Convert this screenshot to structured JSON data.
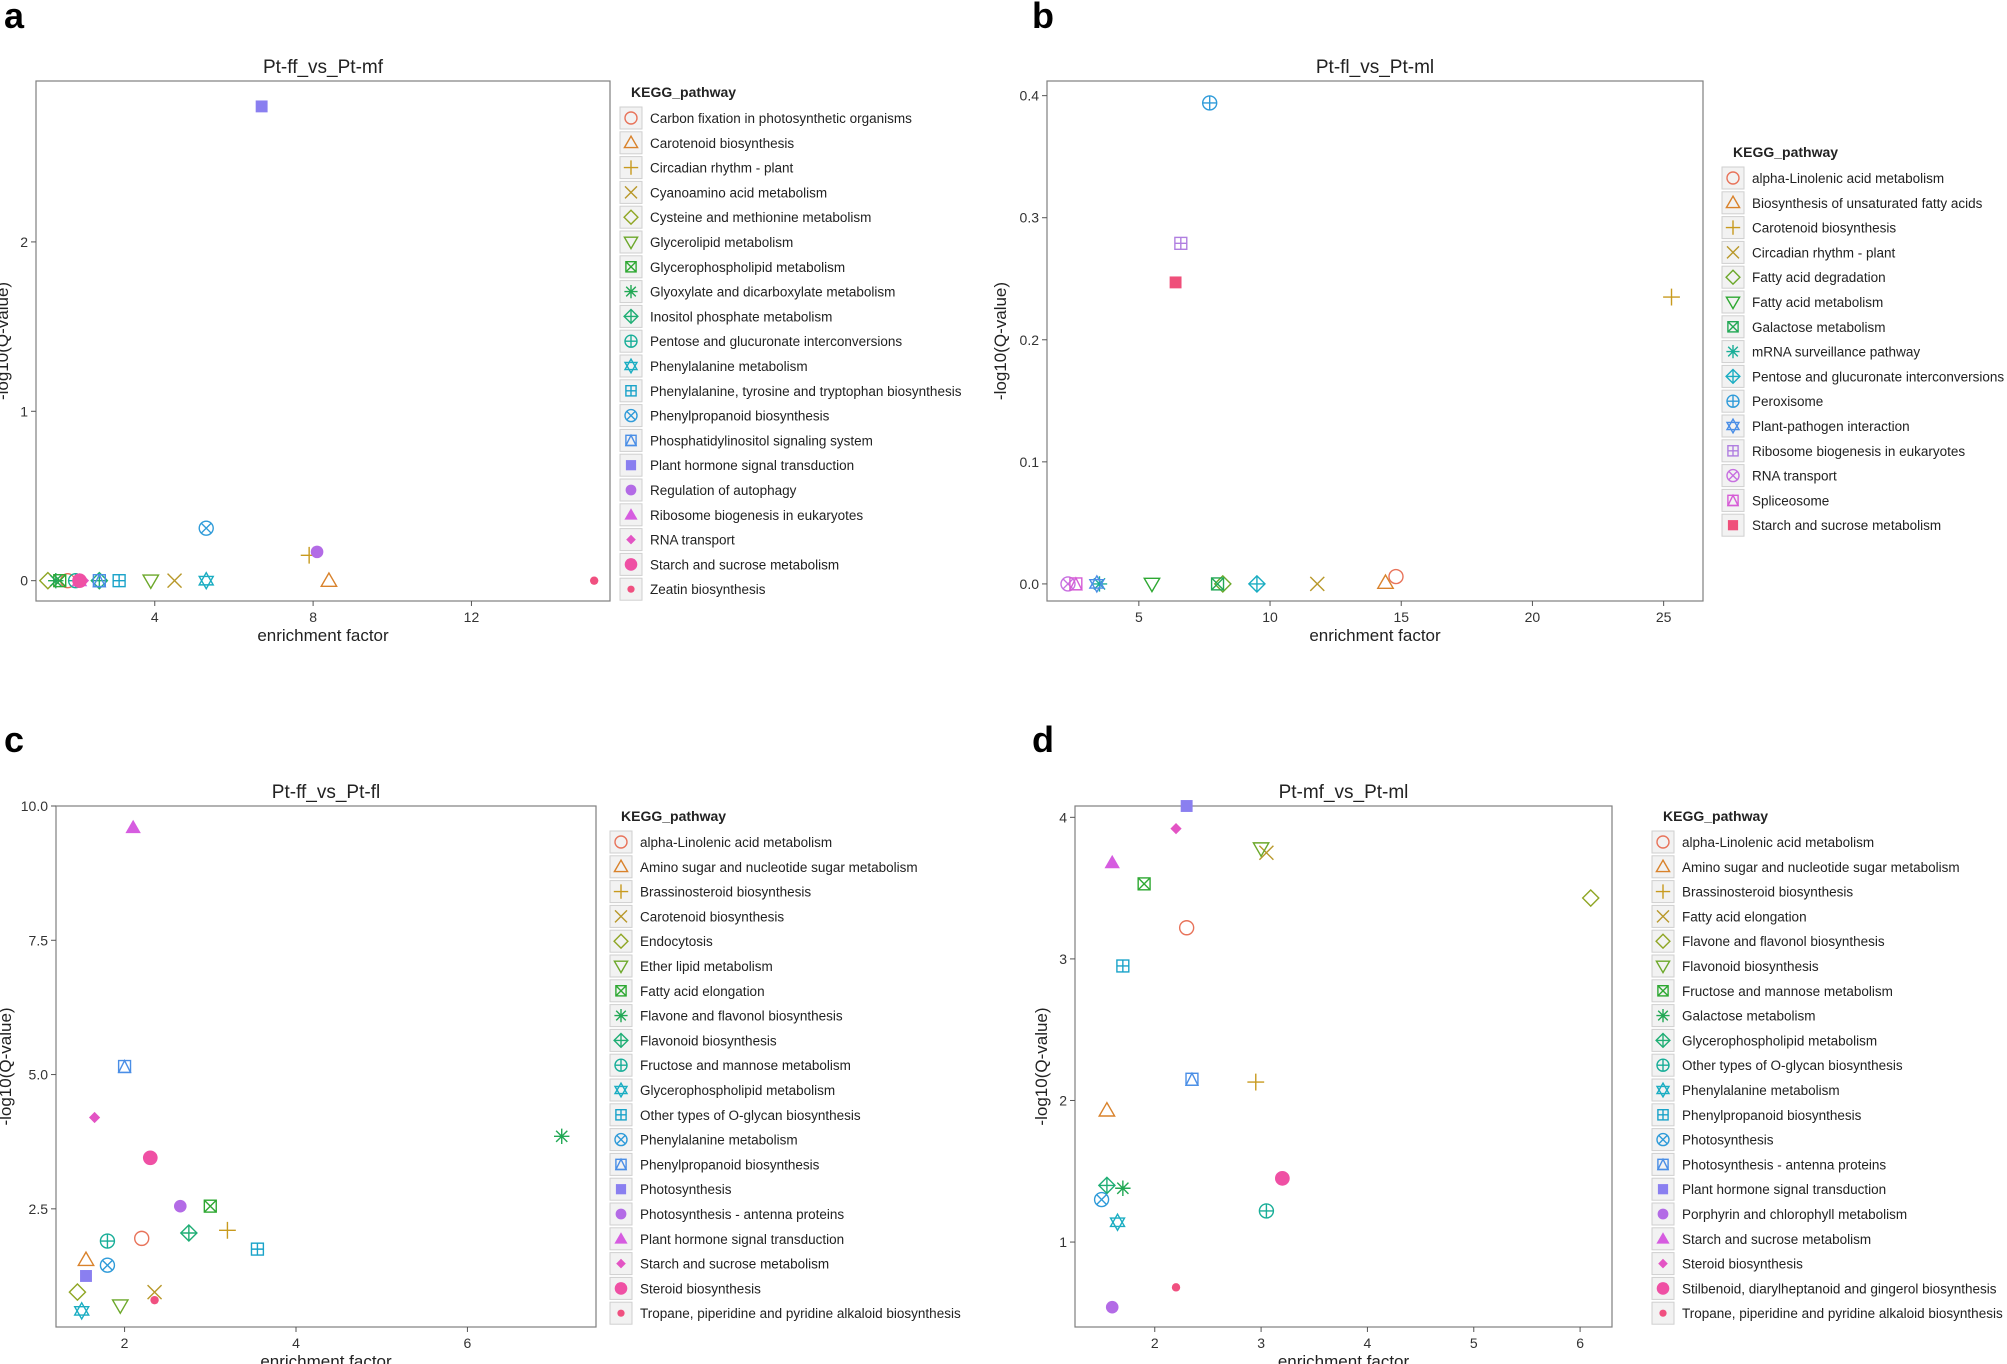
{
  "panels": [
    "a",
    "b",
    "c",
    "d"
  ],
  "chart_data": [
    {
      "panel_letter": "a",
      "type": "scatter",
      "title": "Pt-ff_vs_Pt-mf",
      "xlabel": "enrichment factor",
      "ylabel": "-log10(Q-value)",
      "legend_title": "KEGG_pathway",
      "xlim": [
        1.0,
        15.5
      ],
      "ylim": [
        -0.12,
        2.95
      ],
      "xticks": [
        4,
        8,
        12
      ],
      "yticks": [
        0,
        1,
        2
      ],
      "ytick_labels": [
        "0",
        "1",
        "2"
      ],
      "series": [
        {
          "name": "Carbon fixation in photosynthetic organisms",
          "x": 1.8,
          "y": 0.0
        },
        {
          "name": "Carotenoid biosynthesis",
          "x": 8.4,
          "y": 0.0
        },
        {
          "name": "Circadian rhythm - plant",
          "x": 7.9,
          "y": 0.15
        },
        {
          "name": "Cyanoamino acid metabolism",
          "x": 4.5,
          "y": 0.0
        },
        {
          "name": "Cysteine and methionine metabolism",
          "x": 1.3,
          "y": 0.0
        },
        {
          "name": "Glycerolipid metabolism",
          "x": 3.9,
          "y": 0.0
        },
        {
          "name": "Glycerophospholipid metabolism",
          "x": 1.6,
          "y": 0.0
        },
        {
          "name": "Glyoxylate and dicarboxylate metabolism",
          "x": 1.5,
          "y": 0.0
        },
        {
          "name": "Inositol phosphate metabolism",
          "x": 2.6,
          "y": 0.0
        },
        {
          "name": "Pentose and glucuronate interconversions",
          "x": 2.0,
          "y": 0.0
        },
        {
          "name": "Phenylalanine metabolism",
          "x": 5.3,
          "y": 0.0
        },
        {
          "name": "Phenylalanine, tyrosine and tryptophan biosynthesis",
          "x": 3.1,
          "y": 0.0
        },
        {
          "name": "Phenylpropanoid biosynthesis",
          "x": 5.3,
          "y": 0.31
        },
        {
          "name": "Phosphatidylinositol signaling system",
          "x": 2.6,
          "y": 0.0
        },
        {
          "name": "Plant hormone signal transduction",
          "x": 6.7,
          "y": 2.8
        },
        {
          "name": "Regulation of autophagy",
          "x": 8.1,
          "y": 0.17
        },
        {
          "name": "Ribosome biogenesis in eukaryotes",
          "x": 2.1,
          "y": 0.0
        },
        {
          "name": "RNA transport",
          "x": 2.2,
          "y": 0.0
        },
        {
          "name": "Starch and sucrose metabolism",
          "x": 2.1,
          "y": 0.0
        },
        {
          "name": "Zeatin biosynthesis",
          "x": 15.1,
          "y": 0.0
        }
      ]
    },
    {
      "panel_letter": "b",
      "type": "scatter",
      "title": "Pt-fl_vs_Pt-ml",
      "xlabel": "enrichment factor",
      "ylabel": "-log10(Q-value)",
      "legend_title": "KEGG_pathway",
      "xlim": [
        1.5,
        26.5
      ],
      "ylim": [
        -0.014,
        0.412
      ],
      "xticks": [
        5,
        10,
        15,
        20,
        25
      ],
      "yticks": [
        0,
        0.1,
        0.2,
        0.3,
        0.4
      ],
      "ytick_labels": [
        "0.0",
        "0.1",
        "0.2",
        "0.3",
        "0.4"
      ],
      "series": [
        {
          "name": "alpha-Linolenic acid metabolism",
          "x": 14.8,
          "y": 0.006
        },
        {
          "name": "Biosynthesis of unsaturated fatty acids",
          "x": 14.4,
          "y": 0.001
        },
        {
          "name": "Carotenoid biosynthesis",
          "x": 25.3,
          "y": 0.235
        },
        {
          "name": "Circadian rhythm - plant",
          "x": 11.8,
          "y": 0.0
        },
        {
          "name": "Fatty acid degradation",
          "x": 8.2,
          "y": 0.0
        },
        {
          "name": "Fatty acid metabolism",
          "x": 5.5,
          "y": 0.0
        },
        {
          "name": "Galactose metabolism",
          "x": 8.0,
          "y": 0.0
        },
        {
          "name": "mRNA surveillance pathway",
          "x": 3.5,
          "y": 0.0
        },
        {
          "name": "Pentose and glucuronate interconversions",
          "x": 9.5,
          "y": 0.0
        },
        {
          "name": "Peroxisome",
          "x": 7.7,
          "y": 0.394
        },
        {
          "name": "Plant-pathogen interaction",
          "x": 3.4,
          "y": 0.0
        },
        {
          "name": "Ribosome biogenesis in eukaryotes",
          "x": 6.6,
          "y": 0.279
        },
        {
          "name": "RNA transport",
          "x": 2.3,
          "y": 0.0
        },
        {
          "name": "Spliceosome",
          "x": 2.6,
          "y": 0.0
        },
        {
          "name": "Starch and sucrose metabolism",
          "x": 6.4,
          "y": 0.247
        }
      ]
    },
    {
      "panel_letter": "c",
      "type": "scatter",
      "title": "Pt-ff_vs_Pt-fl",
      "xlabel": "enrichment factor",
      "ylabel": "-log10(Q-value)",
      "legend_title": "KEGG_pathway",
      "xlim": [
        1.2,
        7.5
      ],
      "ylim": [
        0.3,
        10.0
      ],
      "xticks": [
        2,
        4,
        6
      ],
      "yticks": [
        2.5,
        5.0,
        7.5,
        10.0
      ],
      "ytick_labels": [
        "2.5",
        "5.0",
        "7.5",
        "10.0"
      ],
      "series": [
        {
          "name": "alpha-Linolenic acid metabolism",
          "x": 2.2,
          "y": 1.95
        },
        {
          "name": "Amino sugar and nucleotide sugar metabolism",
          "x": 1.55,
          "y": 1.55
        },
        {
          "name": "Brassinosteroid biosynthesis",
          "x": 3.2,
          "y": 2.1
        },
        {
          "name": "Carotenoid biosynthesis",
          "x": 2.35,
          "y": 0.95
        },
        {
          "name": "Endocytosis",
          "x": 1.45,
          "y": 0.95
        },
        {
          "name": "Ether lipid metabolism",
          "x": 1.95,
          "y": 0.7
        },
        {
          "name": "Fatty acid elongation",
          "x": 3.0,
          "y": 2.55
        },
        {
          "name": "Flavone and flavonol biosynthesis",
          "x": 7.1,
          "y": 3.85
        },
        {
          "name": "Flavonoid biosynthesis",
          "x": 2.75,
          "y": 2.05
        },
        {
          "name": "Fructose and mannose metabolism",
          "x": 1.8,
          "y": 1.9
        },
        {
          "name": "Glycerophospholipid metabolism",
          "x": 1.5,
          "y": 0.6
        },
        {
          "name": "Other types of O-glycan biosynthesis",
          "x": 3.55,
          "y": 1.75
        },
        {
          "name": "Phenylalanine metabolism",
          "x": 1.8,
          "y": 1.45
        },
        {
          "name": "Phenylpropanoid biosynthesis",
          "x": 2.0,
          "y": 5.15
        },
        {
          "name": "Photosynthesis",
          "x": 1.55,
          "y": 1.25
        },
        {
          "name": "Photosynthesis - antenna proteins",
          "x": 2.65,
          "y": 2.55
        },
        {
          "name": "Plant hormone signal transduction",
          "x": 2.1,
          "y": 9.6
        },
        {
          "name": "Starch and sucrose metabolism",
          "x": 1.65,
          "y": 4.2
        },
        {
          "name": "Steroid biosynthesis",
          "x": 2.3,
          "y": 3.45
        },
        {
          "name": "Tropane, piperidine and pyridine alkaloid biosynthesis",
          "x": 2.35,
          "y": 0.8
        }
      ]
    },
    {
      "panel_letter": "d",
      "type": "scatter",
      "title": "Pt-mf_vs_Pt-ml",
      "xlabel": "enrichment factor",
      "ylabel": "-log10(Q-value)",
      "legend_title": "KEGG_pathway",
      "xlim": [
        1.25,
        6.3
      ],
      "ylim": [
        0.4,
        4.08
      ],
      "xticks": [
        2,
        3,
        4,
        5,
        6
      ],
      "yticks": [
        1,
        2,
        3,
        4
      ],
      "ytick_labels": [
        "1",
        "2",
        "3",
        "4"
      ],
      "series": [
        {
          "name": "alpha-Linolenic acid metabolism",
          "x": 2.3,
          "y": 3.22
        },
        {
          "name": "Amino sugar and nucleotide sugar metabolism",
          "x": 1.55,
          "y": 1.93
        },
        {
          "name": "Brassinosteroid biosynthesis",
          "x": 2.95,
          "y": 2.13
        },
        {
          "name": "Fatty acid elongation",
          "x": 3.05,
          "y": 3.75
        },
        {
          "name": "Flavone and flavonol biosynthesis",
          "x": 6.1,
          "y": 3.43
        },
        {
          "name": "Flavonoid biosynthesis",
          "x": 3.0,
          "y": 3.78
        },
        {
          "name": "Fructose and mannose metabolism",
          "x": 1.9,
          "y": 3.53
        },
        {
          "name": "Galactose metabolism",
          "x": 1.7,
          "y": 1.38
        },
        {
          "name": "Glycerophospholipid metabolism",
          "x": 1.55,
          "y": 1.4
        },
        {
          "name": "Other types of O-glycan biosynthesis",
          "x": 3.05,
          "y": 1.22
        },
        {
          "name": "Phenylalanine metabolism",
          "x": 1.65,
          "y": 1.14
        },
        {
          "name": "Phenylpropanoid biosynthesis",
          "x": 1.7,
          "y": 2.95
        },
        {
          "name": "Photosynthesis",
          "x": 1.5,
          "y": 1.3
        },
        {
          "name": "Photosynthesis - antenna proteins",
          "x": 2.35,
          "y": 2.15
        },
        {
          "name": "Plant hormone signal transduction",
          "x": 2.3,
          "y": 4.08
        },
        {
          "name": "Porphyrin and chlorophyll metabolism",
          "x": 1.6,
          "y": 0.54
        },
        {
          "name": "Starch and sucrose metabolism",
          "x": 1.6,
          "y": 3.68
        },
        {
          "name": "Steroid biosynthesis",
          "x": 2.2,
          "y": 3.92
        },
        {
          "name": "Stilbenoid, diarylheptanoid and gingerol biosynthesis",
          "x": 3.2,
          "y": 1.45
        },
        {
          "name": "Tropane, piperidine and pyridine alkaloid biosynthesis",
          "x": 2.2,
          "y": 0.68
        }
      ]
    }
  ],
  "marker_styles": [
    {
      "shape": "circle-open",
      "color": "#E8735A"
    },
    {
      "shape": "triangle-open",
      "color": "#D9822B"
    },
    {
      "shape": "plus",
      "color": "#C89A1E"
    },
    {
      "shape": "cross",
      "color": "#B8982A"
    },
    {
      "shape": "diamond-open",
      "color": "#8FA624"
    },
    {
      "shape": "triangle-down-open",
      "color": "#6CA82A"
    },
    {
      "shape": "square-cross",
      "color": "#2EA832"
    },
    {
      "shape": "asterisk",
      "color": "#22A855"
    },
    {
      "shape": "circle-plus-diamond",
      "color": "#1FAE75"
    },
    {
      "shape": "circle-plus",
      "color": "#18AE98"
    },
    {
      "shape": "star-of-david",
      "color": "#1AADC2"
    },
    {
      "shape": "square-plus",
      "color": "#1AA3C9"
    },
    {
      "shape": "circle-cross",
      "color": "#2F9BD9"
    },
    {
      "shape": "square-triangle",
      "color": "#4A8EE6"
    },
    {
      "shape": "square-filled",
      "color": "#8A7FF0"
    },
    {
      "shape": "circle-filled",
      "color": "#B36BE6"
    },
    {
      "shape": "triangle-filled",
      "color": "#D65CE0"
    },
    {
      "shape": "diamond-filled",
      "color": "#E354C4"
    },
    {
      "shape": "circle-large-filled",
      "color": "#EF50A4"
    },
    {
      "shape": "circle-small-filled",
      "color": "#F05080"
    }
  ],
  "legend_order_b": [
    0,
    1,
    2,
    3,
    4,
    5,
    6,
    7,
    8,
    9,
    10,
    11,
    12,
    13,
    14
  ]
}
